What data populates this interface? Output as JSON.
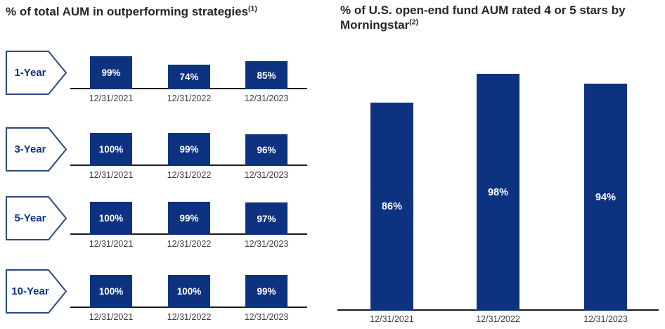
{
  "colors": {
    "bar_fill": "#0d3380",
    "bar_value_text": "#ffffff",
    "arrow_border": "#2b4a7e",
    "arrow_text": "#0d3380",
    "title_text": "#262626",
    "date_text": "#3d3d3d",
    "axis_line": "#1b1b1b",
    "background": "#ffffff"
  },
  "chart_data": [
    {
      "type": "bar",
      "layout": "small-multiples-rows",
      "title": "% of total AUM in outperforming strategies",
      "footnote_marker": "(1)",
      "categories": [
        "12/31/2021",
        "12/31/2022",
        "12/31/2023"
      ],
      "series": [
        {
          "name": "1-Year",
          "values": [
            99,
            74,
            85
          ]
        },
        {
          "name": "3-Year",
          "values": [
            100,
            99,
            96
          ]
        },
        {
          "name": "5-Year",
          "values": [
            100,
            99,
            97
          ]
        },
        {
          "name": "10-Year",
          "values": [
            100,
            100,
            99
          ]
        }
      ],
      "value_suffix": "%",
      "ylim": [
        0,
        100
      ],
      "grid": false,
      "legend": "none",
      "value_labels": "inside-center-white"
    },
    {
      "type": "bar",
      "layout": "single",
      "title": "% of U.S. open-end fund AUM rated 4 or 5 stars by Morningstar",
      "footnote_marker": "(2)",
      "categories": [
        "12/31/2021",
        "12/31/2022",
        "12/31/2023"
      ],
      "values": [
        86,
        98,
        94
      ],
      "value_suffix": "%",
      "ylim": [
        0,
        100
      ],
      "grid": false,
      "legend": "none",
      "value_labels": "inside-center-white"
    }
  ]
}
